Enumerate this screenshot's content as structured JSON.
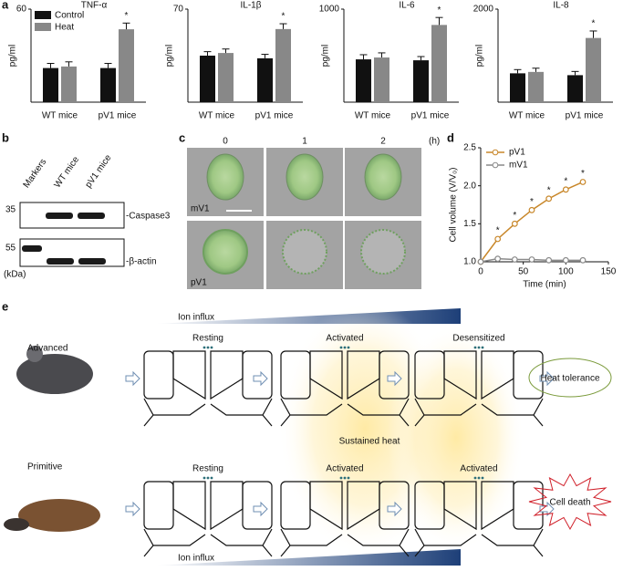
{
  "chart_data": [
    {
      "type": "bar",
      "title": "TNF-α",
      "y_label": "pg/ml",
      "categories": [
        "WT mice",
        "pV1 mice"
      ],
      "ylim": [
        0,
        60
      ],
      "yticks": [
        60
      ],
      "legend": true,
      "series": [
        {
          "name": "Control",
          "color": "#111111",
          "values": [
            22,
            22
          ],
          "errors": [
            3,
            3
          ]
        },
        {
          "name": "Heat",
          "color": "#888888",
          "values": [
            23,
            47
          ],
          "errors": [
            3,
            4
          ],
          "significance": [
            null,
            "*"
          ]
        }
      ]
    },
    {
      "type": "bar",
      "title": "IL-1β",
      "y_label": "pg/ml",
      "categories": [
        "WT mice",
        "pV1 mice"
      ],
      "ylim": [
        0,
        70
      ],
      "yticks": [
        70
      ],
      "legend": false,
      "series": [
        {
          "name": "Control",
          "color": "#111111",
          "values": [
            35,
            33
          ],
          "errors": [
            3,
            3
          ]
        },
        {
          "name": "Heat",
          "color": "#888888",
          "values": [
            37,
            55
          ],
          "errors": [
            3,
            4
          ],
          "significance": [
            null,
            "*"
          ]
        }
      ]
    },
    {
      "type": "bar",
      "title": "IL-6",
      "y_label": "pg/ml",
      "categories": [
        "WT mice",
        "pV1 mice"
      ],
      "ylim": [
        0,
        1000
      ],
      "yticks": [
        1000
      ],
      "legend": false,
      "series": [
        {
          "name": "Control",
          "color": "#111111",
          "values": [
            460,
            450
          ],
          "errors": [
            50,
            40
          ]
        },
        {
          "name": "Heat",
          "color": "#888888",
          "values": [
            480,
            830
          ],
          "errors": [
            50,
            80
          ],
          "significance": [
            null,
            "*"
          ]
        }
      ]
    },
    {
      "type": "bar",
      "title": "IL-8",
      "y_label": "pg/ml",
      "categories": [
        "WT mice",
        "pV1 mice"
      ],
      "ylim": [
        0,
        2000
      ],
      "yticks": [
        2000
      ],
      "legend": false,
      "series": [
        {
          "name": "Control",
          "color": "#111111",
          "values": [
            620,
            580
          ],
          "errors": [
            80,
            80
          ]
        },
        {
          "name": "Heat",
          "color": "#888888",
          "values": [
            650,
            1380
          ],
          "errors": [
            80,
            150
          ],
          "significance": [
            null,
            "*"
          ]
        }
      ]
    },
    {
      "type": "line",
      "x_label": "Time (min)",
      "y_label": "Cell volume (V/V₀)",
      "x": [
        0,
        20,
        40,
        60,
        80,
        100,
        120
      ],
      "xlim": [
        0,
        150
      ],
      "xticks": [
        0,
        50,
        100,
        150
      ],
      "ylim": [
        1,
        2.5
      ],
      "yticks": [
        {
          "value": 1,
          "label": "1.0"
        },
        {
          "value": 1.5,
          "label": "1.5"
        },
        {
          "value": 2,
          "label": "2.0"
        },
        {
          "value": 2.5,
          "label": "2.5"
        }
      ],
      "series": [
        {
          "name": "pV1",
          "color": "#c8872a",
          "values": [
            1.0,
            1.3,
            1.5,
            1.68,
            1.83,
            1.95,
            2.05
          ],
          "significance": [
            null,
            "*",
            "*",
            "*",
            "*",
            "*",
            "*"
          ]
        },
        {
          "name": "mV1",
          "color": "#8a8a8a",
          "values": [
            1.0,
            1.04,
            1.03,
            1.03,
            1.02,
            1.02,
            1.02
          ]
        }
      ]
    }
  ],
  "panel_labels": [
    "a",
    "b",
    "c",
    "d",
    "e"
  ],
  "panel_b": {
    "lanes": [
      "Markers",
      "WT mice",
      "pV1 mice"
    ],
    "markers": [
      "35",
      "55"
    ],
    "unit": "(kDa)",
    "proteins": [
      "-Caspase3",
      "-β-actin"
    ]
  },
  "panel_c": {
    "times": [
      "0",
      "1",
      "2"
    ],
    "unit": "(h)",
    "rows": [
      "mV1",
      "pV1"
    ]
  },
  "panel_e": {
    "ion_influx": [
      "Ion influx",
      "Ion influx"
    ],
    "stimulus": "Sustained heat",
    "rows": [
      {
        "label": "Advanced",
        "states": [
          "Resting",
          "Activated",
          "Desensitized"
        ],
        "outcome": "Heat tolerance"
      },
      {
        "label": "Primitive",
        "states": [
          "Resting",
          "Activated",
          "Activated"
        ],
        "outcome": "Cell death"
      }
    ]
  }
}
